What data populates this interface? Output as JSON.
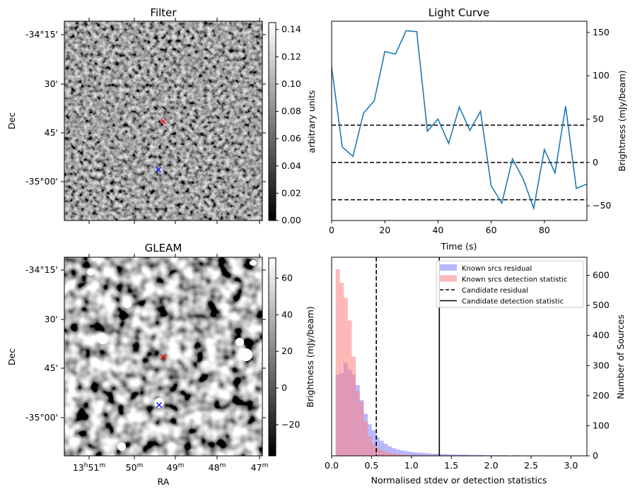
{
  "panels": {
    "filter": {
      "title": "Filter",
      "ylabel": "Dec",
      "dec_ticks": [
        "-34°15'",
        "30'",
        "45'",
        "-35°00'"
      ],
      "colorbar_label": "arbitrary units",
      "colorbar_ticks": [
        "0.00",
        "0.02",
        "0.04",
        "0.06",
        "0.08",
        "0.10",
        "0.12",
        "0.14"
      ]
    },
    "gleam": {
      "title": "GLEAM",
      "ylabel": "Dec",
      "xlabel": "RA",
      "dec_ticks": [
        "-34°15'",
        "30'",
        "45'",
        "-35°00'"
      ],
      "ra_ticks": [
        {
          "h": "13",
          "m": "51"
        },
        {
          "h": "",
          "m": "50"
        },
        {
          "h": "",
          "m": "49"
        },
        {
          "h": "",
          "m": "48"
        },
        {
          "h": "",
          "m": "47"
        }
      ],
      "colorbar_ticks": [
        "60",
        "40",
        "20",
        "0",
        "−20"
      ]
    }
  },
  "markers": {
    "candidate_color": "#ff0000",
    "known_color": "#0000ff",
    "symbol": "x"
  },
  "chart_data": [
    {
      "type": "line",
      "title": "Light Curve",
      "xlabel": "Time (s)",
      "ylabel": "Brightness (mJy/beam)",
      "xlim": [
        0,
        96
      ],
      "ylim": [
        -67,
        163
      ],
      "x_ticks": [
        "0",
        "20",
        "40",
        "60",
        "80"
      ],
      "y_ticks": [
        "−50",
        "0",
        "50",
        "100",
        "150"
      ],
      "line_color": "#1f77b4",
      "x": [
        0,
        4,
        8,
        12,
        16,
        20,
        24,
        28,
        32,
        36,
        40,
        44,
        48,
        52,
        56,
        60,
        64,
        68,
        72,
        76,
        80,
        84,
        88,
        92,
        96
      ],
      "values": [
        110,
        18,
        7,
        57,
        71,
        128,
        125,
        152,
        151,
        36,
        50,
        22,
        64,
        37,
        59,
        -27,
        -47,
        4,
        -19,
        -53,
        15,
        -12,
        65,
        -30,
        -25
      ],
      "hlines": [
        {
          "y": 43,
          "style": "dashed",
          "color": "#000000"
        },
        {
          "y": 0,
          "style": "dashed",
          "color": "#000000"
        },
        {
          "y": -43,
          "style": "dashed",
          "color": "#000000"
        }
      ]
    },
    {
      "type": "histogram",
      "xlabel": "Normalised stdev or detection statistics",
      "ylabel_left": "Brightness (mJy/beam)",
      "ylabel_right": "Number of Sources",
      "xlim": [
        0,
        3.2
      ],
      "ylim": [
        0,
        660
      ],
      "x_ticks": [
        "0.0",
        "0.5",
        "1.0",
        "1.5",
        "2.0",
        "2.5",
        "3.0"
      ],
      "y_ticks": [
        "0",
        "100",
        "200",
        "300",
        "400",
        "500",
        "600"
      ],
      "bin_start": 0.0,
      "bin_width": 0.05,
      "series": [
        {
          "name": "Known srcs residual",
          "color": "#7f7fff",
          "opacity": 0.55,
          "values": [
            0,
            270,
            275,
            310,
            285,
            270,
            235,
            185,
            140,
            105,
            85,
            62,
            50,
            40,
            32,
            26,
            22,
            18,
            16,
            14,
            12,
            11,
            10,
            9,
            8,
            7,
            7,
            6,
            6,
            5,
            5,
            4,
            4,
            4,
            3,
            3,
            3,
            3,
            2,
            2,
            2,
            2,
            2,
            2,
            1,
            1,
            2,
            1,
            1,
            1,
            1,
            1,
            1,
            1,
            1,
            1,
            1,
            1,
            1,
            1,
            1,
            1,
            1,
            1
          ]
        },
        {
          "name": "Known srcs detection statistic",
          "color": "#ff7f7f",
          "opacity": 0.55,
          "values": [
            0,
            620,
            575,
            525,
            450,
            330,
            215,
            180,
            115,
            65,
            40,
            25,
            18,
            14,
            10,
            8,
            6,
            5,
            4,
            3,
            3,
            2,
            2,
            2,
            1,
            1,
            1,
            1,
            1,
            1,
            1,
            0,
            1,
            0,
            0,
            0,
            0,
            0,
            0,
            0,
            0,
            0,
            0,
            0,
            0,
            0,
            0,
            0,
            0,
            0,
            0,
            0,
            0,
            0,
            0,
            0,
            0,
            0,
            0,
            0,
            0,
            0,
            0,
            0
          ]
        }
      ],
      "vlines": [
        {
          "name": "Candidate residual",
          "x": 0.56,
          "style": "dashed",
          "color": "#000000"
        },
        {
          "name": "Candidate detection statistic",
          "x": 1.35,
          "style": "solid",
          "color": "#000000"
        }
      ],
      "legend_position": "top-right"
    }
  ]
}
